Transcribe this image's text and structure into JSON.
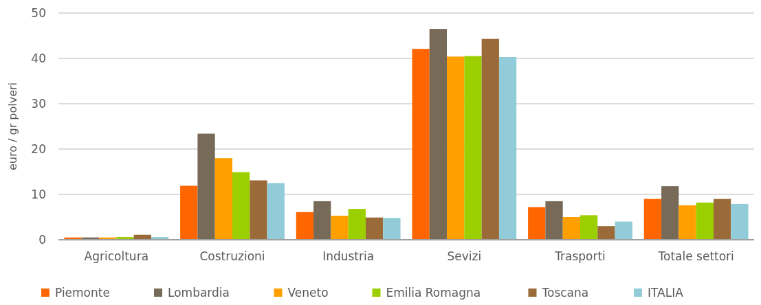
{
  "chart_data": {
    "type": "bar",
    "ylabel": "euro / gr polveri",
    "categories": [
      "Agricoltura",
      "Costruzioni",
      "Industria",
      "Sevizi",
      "Trasporti",
      "Totale settori"
    ],
    "series": [
      {
        "name": "Piemonte",
        "color": "#ff6600",
        "values": [
          0.5,
          11.9,
          6.1,
          42.1,
          7.2,
          9.0
        ]
      },
      {
        "name": "Lombardia",
        "color": "#776b58",
        "values": [
          0.5,
          23.4,
          8.5,
          46.5,
          8.5,
          11.8
        ]
      },
      {
        "name": "Veneto",
        "color": "#ffa000",
        "values": [
          0.5,
          18.0,
          5.3,
          40.4,
          5.0,
          7.6
        ]
      },
      {
        "name": "Emilia Romagna",
        "color": "#9ccf00",
        "values": [
          0.6,
          14.9,
          6.8,
          40.5,
          5.4,
          8.2
        ]
      },
      {
        "name": "Toscana",
        "color": "#9a6b38",
        "values": [
          1.1,
          13.1,
          4.9,
          44.3,
          3.0,
          9.0
        ]
      },
      {
        "name": "ITALIA",
        "color": "#92ccd8",
        "values": [
          0.6,
          12.5,
          4.8,
          40.3,
          4.0,
          7.9
        ]
      }
    ],
    "ylim": [
      0,
      50
    ],
    "yticks": [
      0,
      10,
      20,
      30,
      40,
      50
    ],
    "grid": "y",
    "legend": "bottom"
  }
}
